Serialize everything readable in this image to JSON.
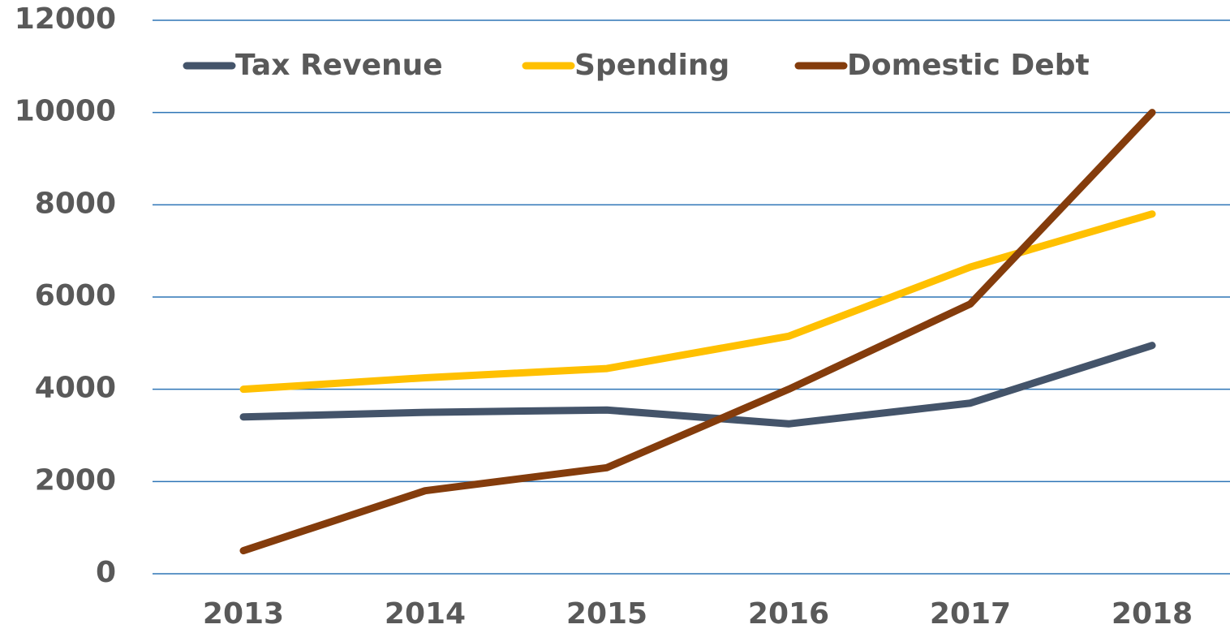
{
  "chart_data": {
    "type": "line",
    "categories": [
      "2013",
      "2014",
      "2015",
      "2016",
      "2017",
      "2018"
    ],
    "series": [
      {
        "name": "Tax Revenue",
        "color": "#44546a",
        "values": [
          3400,
          3500,
          3550,
          3250,
          3700,
          4950
        ]
      },
      {
        "name": "Spending",
        "color": "#ffc000",
        "values": [
          4000,
          4250,
          4450,
          5150,
          6650,
          7800
        ]
      },
      {
        "name": "Domestic Debt",
        "color": "#843c0c",
        "values": [
          500,
          1800,
          2300,
          4000,
          5850,
          10000
        ]
      }
    ],
    "ylim": [
      0,
      12000
    ],
    "yticks": [
      0,
      2000,
      4000,
      6000,
      8000,
      10000,
      12000
    ],
    "grid": true,
    "legend": "top"
  }
}
